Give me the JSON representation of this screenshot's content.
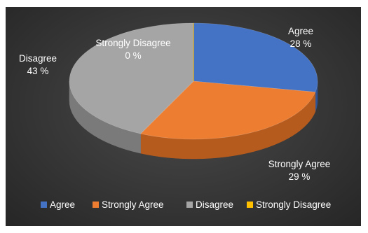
{
  "chart_data": {
    "type": "pie",
    "style": "3d",
    "title": "",
    "legend_position": "bottom",
    "slices": [
      {
        "label": "Agree",
        "value": 28,
        "display": "28 %",
        "color": "#4472C4",
        "side_color": "#2F5597"
      },
      {
        "label": "Strongly Agree",
        "value": 29,
        "display": "29 %",
        "color": "#ED7D31",
        "side_color": "#B65B1E"
      },
      {
        "label": "Disagree",
        "value": 43,
        "display": "43 %",
        "color": "#A5A5A5",
        "side_color": "#7A7A7A"
      },
      {
        "label": "Strongly Disagree",
        "value": 0,
        "display": "0 %",
        "color": "#FFC000",
        "side_color": "#C79400"
      }
    ]
  }
}
